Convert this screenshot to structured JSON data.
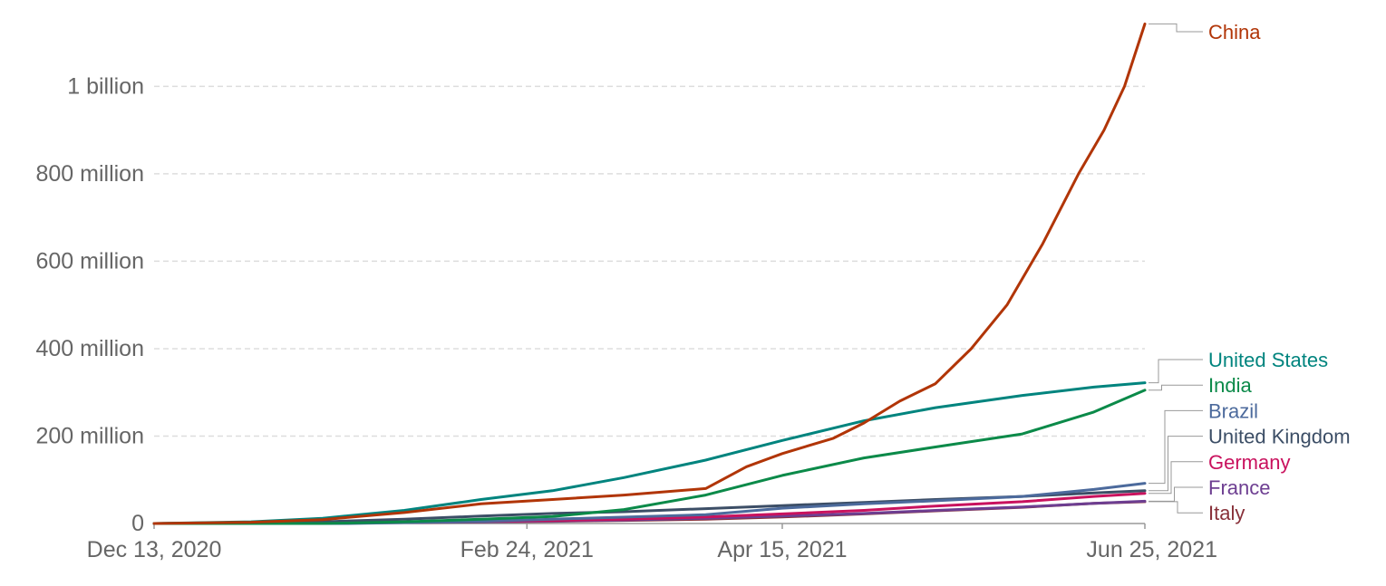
{
  "chart_data": {
    "type": "line",
    "title": "",
    "xlabel": "",
    "ylabel": "",
    "x_start": "2020-12-13",
    "x_end": "2021-06-25",
    "ylim": [
      0,
      1150000000
    ],
    "y_ticks": [
      {
        "value": 0,
        "label": "0"
      },
      {
        "value": 200000000,
        "label": "200 million"
      },
      {
        "value": 400000000,
        "label": "400 million"
      },
      {
        "value": 600000000,
        "label": "600 million"
      },
      {
        "value": 800000000,
        "label": "800 million"
      },
      {
        "value": 1000000000,
        "label": "1 billion"
      }
    ],
    "x_ticks": [
      {
        "date": "2020-12-13",
        "label": "Dec 13, 2020"
      },
      {
        "date": "2021-02-24",
        "label": "Feb 24, 2021"
      },
      {
        "date": "2021-04-15",
        "label": "Apr 15, 2021"
      },
      {
        "date": "2021-06-25",
        "label": "Jun 25, 2021"
      }
    ],
    "grid": true,
    "legend_placement": "right, labels at line ends",
    "series": [
      {
        "name": "China",
        "color": "#b13507",
        "points": [
          [
            "2020-12-13",
            0
          ],
          [
            "2021-01-01",
            3000000
          ],
          [
            "2021-01-15",
            9000000
          ],
          [
            "2021-01-31",
            25000000
          ],
          [
            "2021-02-15",
            45000000
          ],
          [
            "2021-03-01",
            55000000
          ],
          [
            "2021-03-15",
            65000000
          ],
          [
            "2021-03-31",
            80000000
          ],
          [
            "2021-04-08",
            130000000
          ],
          [
            "2021-04-15",
            160000000
          ],
          [
            "2021-04-25",
            195000000
          ],
          [
            "2021-05-01",
            230000000
          ],
          [
            "2021-05-08",
            280000000
          ],
          [
            "2021-05-15",
            320000000
          ],
          [
            "2021-05-22",
            400000000
          ],
          [
            "2021-05-29",
            500000000
          ],
          [
            "2021-06-05",
            640000000
          ],
          [
            "2021-06-12",
            800000000
          ],
          [
            "2021-06-17",
            900000000
          ],
          [
            "2021-06-21",
            1000000000
          ],
          [
            "2021-06-25",
            1143000000
          ]
        ]
      },
      {
        "name": "United States",
        "color": "#00847e",
        "points": [
          [
            "2020-12-13",
            0
          ],
          [
            "2021-01-01",
            4000000
          ],
          [
            "2021-01-15",
            12000000
          ],
          [
            "2021-01-31",
            30000000
          ],
          [
            "2021-02-15",
            55000000
          ],
          [
            "2021-03-01",
            75000000
          ],
          [
            "2021-03-15",
            105000000
          ],
          [
            "2021-03-31",
            145000000
          ],
          [
            "2021-04-15",
            190000000
          ],
          [
            "2021-05-01",
            235000000
          ],
          [
            "2021-05-15",
            265000000
          ],
          [
            "2021-06-01",
            293000000
          ],
          [
            "2021-06-15",
            312000000
          ],
          [
            "2021-06-25",
            322000000
          ]
        ]
      },
      {
        "name": "India",
        "color": "#0b8a49",
        "points": [
          [
            "2020-12-13",
            0
          ],
          [
            "2021-01-15",
            0
          ],
          [
            "2021-01-31",
            4000000
          ],
          [
            "2021-02-15",
            10000000
          ],
          [
            "2021-03-01",
            16000000
          ],
          [
            "2021-03-15",
            32000000
          ],
          [
            "2021-03-31",
            65000000
          ],
          [
            "2021-04-15",
            110000000
          ],
          [
            "2021-05-01",
            150000000
          ],
          [
            "2021-05-15",
            175000000
          ],
          [
            "2021-06-01",
            205000000
          ],
          [
            "2021-06-15",
            255000000
          ],
          [
            "2021-06-25",
            305000000
          ]
        ]
      },
      {
        "name": "Brazil",
        "color": "#4c6a9c",
        "points": [
          [
            "2020-12-13",
            0
          ],
          [
            "2021-01-20",
            0
          ],
          [
            "2021-02-15",
            5000000
          ],
          [
            "2021-03-01",
            10000000
          ],
          [
            "2021-03-31",
            20000000
          ],
          [
            "2021-04-15",
            35000000
          ],
          [
            "2021-05-01",
            45000000
          ],
          [
            "2021-05-15",
            52000000
          ],
          [
            "2021-06-01",
            62000000
          ],
          [
            "2021-06-15",
            78000000
          ],
          [
            "2021-06-25",
            92000000
          ]
        ]
      },
      {
        "name": "United Kingdom",
        "color": "#3c4e66",
        "points": [
          [
            "2020-12-13",
            0
          ],
          [
            "2021-01-01",
            1500000
          ],
          [
            "2021-01-15",
            4000000
          ],
          [
            "2021-01-31",
            10000000
          ],
          [
            "2021-02-15",
            17000000
          ],
          [
            "2021-03-01",
            23000000
          ],
          [
            "2021-03-15",
            27000000
          ],
          [
            "2021-03-31",
            34000000
          ],
          [
            "2021-04-15",
            41000000
          ],
          [
            "2021-05-01",
            48000000
          ],
          [
            "2021-05-15",
            55000000
          ],
          [
            "2021-06-01",
            62000000
          ],
          [
            "2021-06-15",
            70000000
          ],
          [
            "2021-06-25",
            75000000
          ]
        ]
      },
      {
        "name": "Germany",
        "color": "#c9125e",
        "points": [
          [
            "2020-12-13",
            0
          ],
          [
            "2021-01-01",
            300000
          ],
          [
            "2021-01-31",
            3000000
          ],
          [
            "2021-02-15",
            5000000
          ],
          [
            "2021-03-01",
            7000000
          ],
          [
            "2021-03-15",
            10000000
          ],
          [
            "2021-03-31",
            15000000
          ],
          [
            "2021-04-15",
            22000000
          ],
          [
            "2021-05-01",
            30000000
          ],
          [
            "2021-05-15",
            40000000
          ],
          [
            "2021-06-01",
            50000000
          ],
          [
            "2021-06-15",
            62000000
          ],
          [
            "2021-06-25",
            69000000
          ]
        ]
      },
      {
        "name": "France",
        "color": "#6d3e91",
        "points": [
          [
            "2020-12-13",
            0
          ],
          [
            "2021-01-01",
            100000
          ],
          [
            "2021-01-31",
            2500000
          ],
          [
            "2021-02-15",
            4000000
          ],
          [
            "2021-03-01",
            5500000
          ],
          [
            "2021-03-15",
            8000000
          ],
          [
            "2021-03-31",
            12000000
          ],
          [
            "2021-04-15",
            17000000
          ],
          [
            "2021-05-01",
            23000000
          ],
          [
            "2021-05-15",
            30000000
          ],
          [
            "2021-06-01",
            38000000
          ],
          [
            "2021-06-15",
            46000000
          ],
          [
            "2021-06-25",
            51000000
          ]
        ]
      },
      {
        "name": "Italy",
        "color": "#883039",
        "points": [
          [
            "2020-12-13",
            0
          ],
          [
            "2021-01-01",
            200000
          ],
          [
            "2021-01-31",
            2000000
          ],
          [
            "2021-02-15",
            3500000
          ],
          [
            "2021-03-01",
            5000000
          ],
          [
            "2021-03-15",
            7000000
          ],
          [
            "2021-03-31",
            10000000
          ],
          [
            "2021-04-15",
            15000000
          ],
          [
            "2021-05-01",
            22000000
          ],
          [
            "2021-05-15",
            29000000
          ],
          [
            "2021-06-01",
            37000000
          ],
          [
            "2021-06-15",
            46000000
          ],
          [
            "2021-06-25",
            50000000
          ]
        ]
      }
    ]
  }
}
